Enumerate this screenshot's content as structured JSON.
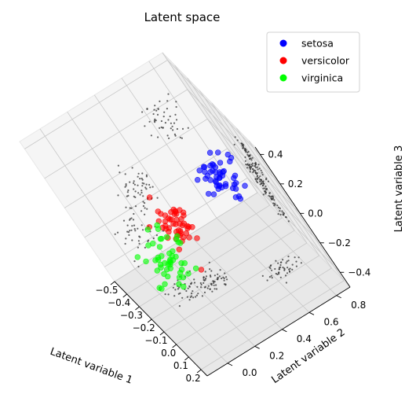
{
  "chart_data": {
    "type": "scatter",
    "projection": "3d",
    "title": "Latent space",
    "xlabel": "Latent variable 1",
    "ylabel": "Latent variable 2",
    "zlabel": "Latent variable 3",
    "xlim": [
      -0.5,
      0.25
    ],
    "ylim": [
      -0.15,
      0.9
    ],
    "zlim": [
      -0.5,
      0.45
    ],
    "xticks": [
      -0.5,
      -0.4,
      -0.3,
      -0.2,
      -0.1,
      0.0,
      0.1,
      0.2
    ],
    "xtick_labels": [
      "−0.5",
      "−0.4",
      "−0.3",
      "−0.2",
      "−0.1",
      "0.0",
      "0.1",
      "0.2"
    ],
    "yticks": [
      0.0,
      0.2,
      0.4,
      0.6,
      0.8
    ],
    "ytick_labels": [
      "0.0",
      "0.2",
      "0.4",
      "0.6",
      "0.8"
    ],
    "zticks": [
      -0.4,
      -0.2,
      0.0,
      0.2,
      0.4
    ],
    "ztick_labels": [
      "−0.4",
      "−0.2",
      "0.0",
      "0.2",
      "0.4"
    ],
    "grid": true,
    "legend": "top-right",
    "projections_on_panes": true,
    "projection_color": "#333333",
    "series": [
      {
        "name": "setosa",
        "color": "#0000ff",
        "center": [
          -0.05,
          0.68,
          0.12
        ],
        "spread": [
          0.03,
          0.07,
          0.08
        ],
        "count": 50
      },
      {
        "name": "versicolor",
        "color": "#ff0000",
        "center": [
          -0.2,
          0.3,
          -0.12
        ],
        "spread": [
          0.04,
          0.06,
          0.07
        ],
        "count": 50
      },
      {
        "name": "virginica",
        "color": "#00ff00",
        "center": [
          -0.25,
          0.15,
          -0.3
        ],
        "spread": [
          0.05,
          0.08,
          0.07
        ],
        "count": 50
      }
    ]
  }
}
